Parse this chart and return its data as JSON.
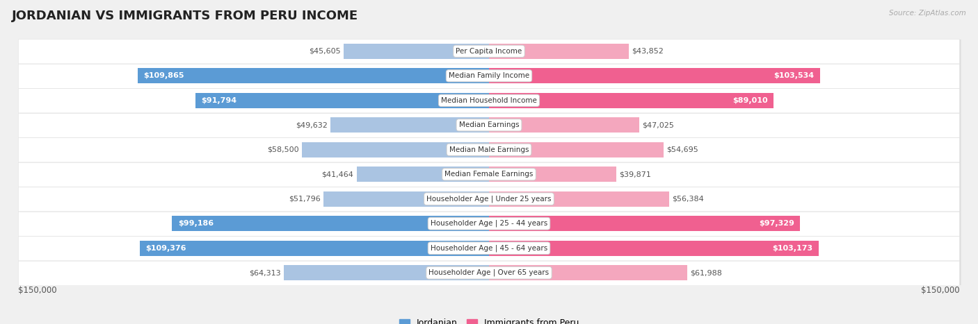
{
  "title": "JORDANIAN VS IMMIGRANTS FROM PERU INCOME",
  "source": "Source: ZipAtlas.com",
  "categories": [
    "Per Capita Income",
    "Median Family Income",
    "Median Household Income",
    "Median Earnings",
    "Median Male Earnings",
    "Median Female Earnings",
    "Householder Age | Under 25 years",
    "Householder Age | 25 - 44 years",
    "Householder Age | 45 - 64 years",
    "Householder Age | Over 65 years"
  ],
  "jordanian_values": [
    45605,
    109865,
    91794,
    49632,
    58500,
    41464,
    51796,
    99186,
    109376,
    64313
  ],
  "peru_values": [
    43852,
    103534,
    89010,
    47025,
    54695,
    39871,
    56384,
    97329,
    103173,
    61988
  ],
  "max_val": 150000,
  "jordanian_color_light": "#aac4e2",
  "jordanian_color_dark": "#5b9bd5",
  "peru_color_light": "#f4a7be",
  "peru_color_dark": "#f06090",
  "label_threshold": 75000,
  "bg_color": "#f0f0f0",
  "bar_bg_color": "#ffffff",
  "legend_jordanian": "Jordanian",
  "legend_peru": "Immigrants from Peru",
  "y_axis_label_left": "$150,000",
  "y_axis_label_right": "$150,000",
  "title_fontsize": 13,
  "bar_height": 0.62,
  "value_fontsize": 8.0,
  "cat_fontsize": 7.5
}
